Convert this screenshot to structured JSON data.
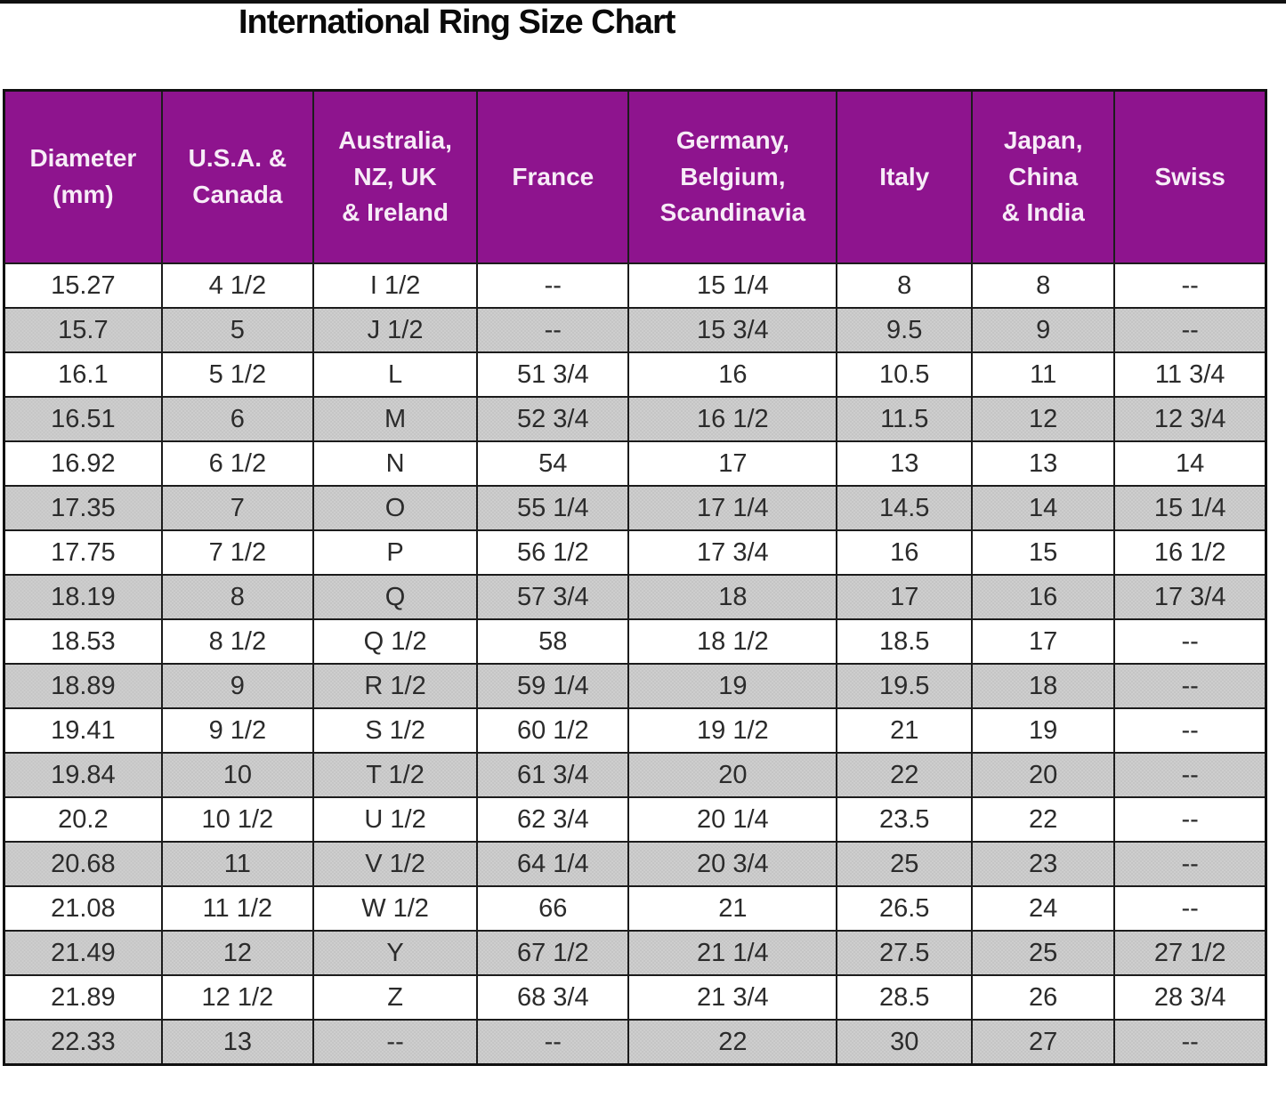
{
  "chart_data": {
    "type": "table",
    "title": "International Ring Size Chart",
    "columns": [
      "Diameter\n(mm)",
      "U.S.A. &\nCanada",
      "Australia,\nNZ, UK\n& Ireland",
      "France",
      "Germany,\nBelgium,\nScandinavia",
      "Italy",
      "Japan,\nChina\n& India",
      "Swiss"
    ],
    "rows": [
      [
        "15.27",
        "4 1/2",
        "I 1/2",
        "--",
        "15 1/4",
        "8",
        "8",
        "--"
      ],
      [
        "15.7",
        "5",
        "J 1/2",
        "--",
        "15 3/4",
        "9.5",
        "9",
        "--"
      ],
      [
        "16.1",
        "5 1/2",
        "L",
        "51 3/4",
        "16",
        "10.5",
        "11",
        "11 3/4"
      ],
      [
        "16.51",
        "6",
        "M",
        "52 3/4",
        "16 1/2",
        "11.5",
        "12",
        "12 3/4"
      ],
      [
        "16.92",
        "6 1/2",
        "N",
        "54",
        "17",
        "13",
        "13",
        "14"
      ],
      [
        "17.35",
        "7",
        "O",
        "55 1/4",
        "17 1/4",
        "14.5",
        "14",
        "15 1/4"
      ],
      [
        "17.75",
        "7 1/2",
        "P",
        "56 1/2",
        "17 3/4",
        "16",
        "15",
        "16 1/2"
      ],
      [
        "18.19",
        "8",
        "Q",
        "57 3/4",
        "18",
        "17",
        "16",
        "17 3/4"
      ],
      [
        "18.53",
        "8 1/2",
        "Q 1/2",
        "58",
        "18 1/2",
        "18.5",
        "17",
        "--"
      ],
      [
        "18.89",
        "9",
        "R 1/2",
        "59 1/4",
        "19",
        "19.5",
        "18",
        "--"
      ],
      [
        "19.41",
        "9 1/2",
        "S 1/2",
        "60 1/2",
        "19 1/2",
        "21",
        "19",
        "--"
      ],
      [
        "19.84",
        "10",
        "T 1/2",
        "61 3/4",
        "20",
        "22",
        "20",
        "--"
      ],
      [
        "20.2",
        "10 1/2",
        "U 1/2",
        "62 3/4",
        "20 1/4",
        "23.5",
        "22",
        "--"
      ],
      [
        "20.68",
        "11",
        "V 1/2",
        "64 1/4",
        "20 3/4",
        "25",
        "23",
        "--"
      ],
      [
        "21.08",
        "11 1/2",
        "W 1/2",
        "66",
        "21",
        "26.5",
        "24",
        "--"
      ],
      [
        "21.49",
        "12",
        "Y",
        "67 1/2",
        "21 1/4",
        "27.5",
        "25",
        "27 1/2"
      ],
      [
        "21.89",
        "12 1/2",
        "Z",
        "68 3/4",
        "21 3/4",
        "28.5",
        "26",
        "28 3/4"
      ],
      [
        "22.33",
        "13",
        "--",
        "--",
        "22",
        "30",
        "27",
        "--"
      ]
    ],
    "layout_hints": {
      "header_bg": "#8E148E",
      "header_text": "#F7ECF7",
      "alt_row_bg": "#C9C9C9",
      "grid_color": "#1C1C1C",
      "row_striping": "even rows shaded, starting white"
    }
  }
}
